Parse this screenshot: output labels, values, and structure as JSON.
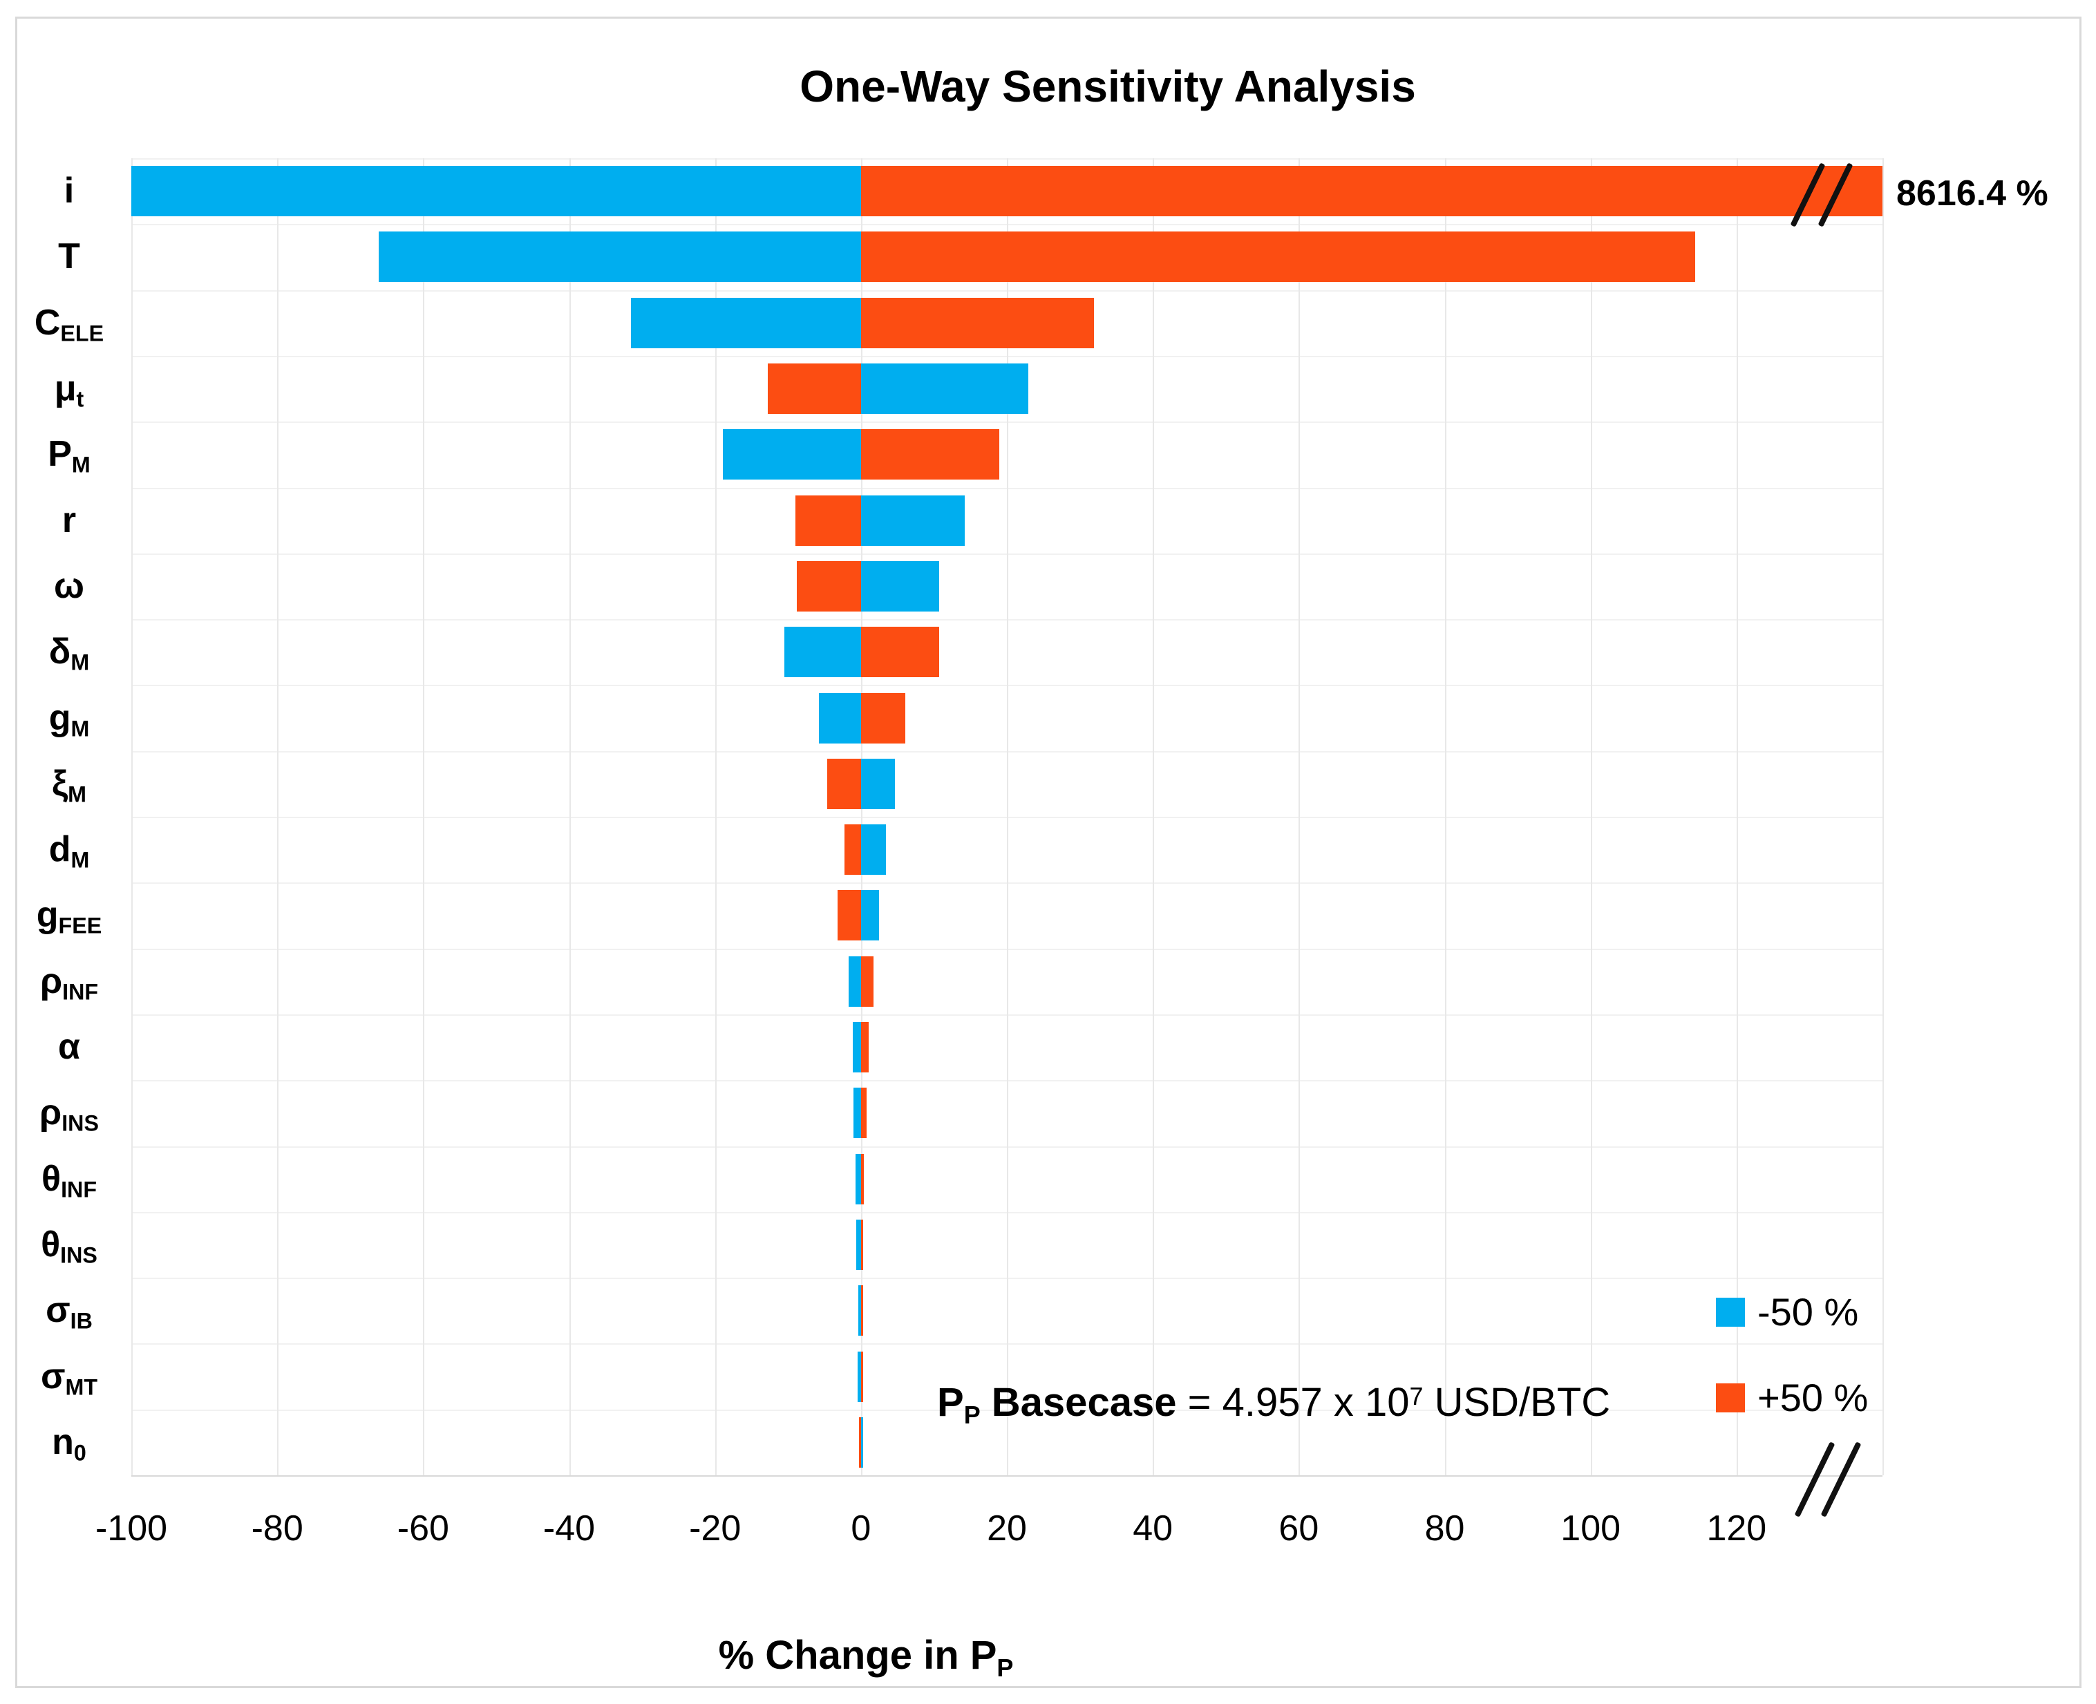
{
  "title": "One-Way Sensitivity Analysis",
  "xlabel": {
    "main": "% Change in P",
    "sub": "P"
  },
  "i_annotation": "8616.4 %",
  "basecase": {
    "p": "P",
    "p_sub": "P",
    "bold_rest": " Basecase",
    "mid": " = 4.957 x 10",
    "exp": "7",
    "tail": " USD/BTC"
  },
  "legend": [
    {
      "label": "-50 %",
      "color": "#00AEEF"
    },
    {
      "label": "+50 %",
      "color": "#FC4D12"
    }
  ],
  "axis": {
    "tick_labels": [
      "-100",
      "-80",
      "-60",
      "-40",
      "-20",
      "0",
      "20",
      "40",
      "60",
      "80",
      "100",
      "120"
    ],
    "min": -100,
    "max": 140,
    "step": 20
  },
  "chart_data": {
    "type": "bar",
    "orientation": "horizontal-tornado",
    "title": "One-Way Sensitivity Analysis",
    "xlabel": "% Change in P_P",
    "xlim": [
      -100,
      140
    ],
    "xticks": [
      -100,
      -80,
      -60,
      -40,
      -20,
      0,
      20,
      40,
      60,
      80,
      100,
      120
    ],
    "grid": true,
    "legend_position": "inside-bottom-right",
    "axis_break": "x-axis broken near +130; the i (+50 %) bar truly extends to 8616.4 %",
    "categories": [
      "i",
      "T",
      "C_ELE",
      "mu_t",
      "P_M",
      "r",
      "omega",
      "delta_M",
      "g_M",
      "xi_M",
      "d_M",
      "g_FEE",
      "rho_INF",
      "alpha",
      "rho_INS",
      "theta_INF",
      "theta_INS",
      "sigma_IB",
      "sigma_MT",
      "n_0"
    ],
    "category_labels": [
      {
        "main": "i",
        "sub": ""
      },
      {
        "main": "T",
        "sub": ""
      },
      {
        "main": "C",
        "sub": "ELE"
      },
      {
        "main": "μ",
        "sub": "t"
      },
      {
        "main": "P",
        "sub": "M"
      },
      {
        "main": "r",
        "sub": ""
      },
      {
        "main": "ω",
        "sub": ""
      },
      {
        "main": "δ",
        "sub": "M"
      },
      {
        "main": "g",
        "sub": "M"
      },
      {
        "main": "ξ",
        "sub": "M"
      },
      {
        "main": "d",
        "sub": "M"
      },
      {
        "main": "g",
        "sub": "FEE"
      },
      {
        "main": "ρ",
        "sub": "INF"
      },
      {
        "main": "α",
        "sub": ""
      },
      {
        "main": "ρ",
        "sub": "INS"
      },
      {
        "main": "θ",
        "sub": "INF"
      },
      {
        "main": "θ",
        "sub": "INS"
      },
      {
        "main": "σ",
        "sub": "IB"
      },
      {
        "main": "σ",
        "sub": "MT"
      },
      {
        "main": "n",
        "sub": "0"
      }
    ],
    "series": [
      {
        "name": "-50 %",
        "color": "#00AEEF",
        "values": [
          -100.0,
          -66.1,
          -31.5,
          22.9,
          -18.9,
          14.2,
          10.7,
          -10.5,
          -5.8,
          4.7,
          3.4,
          2.5,
          -1.7,
          -1.1,
          -1.0,
          -0.7,
          -0.6,
          -0.4,
          -0.5,
          0.1
        ]
      },
      {
        "name": "+50 %",
        "color": "#FC4D12",
        "values": [
          8616.4,
          114.3,
          31.9,
          -12.8,
          19.0,
          -9.0,
          -8.8,
          10.7,
          6.1,
          -4.6,
          -2.3,
          -3.2,
          1.7,
          1.1,
          0.8,
          0.35,
          0.15,
          0.15,
          0.15,
          -0.3
        ]
      }
    ],
    "clamped": {
      "category": "i",
      "series": "+50 %",
      "true_value": 8616.4,
      "displayed_at": 140
    }
  }
}
